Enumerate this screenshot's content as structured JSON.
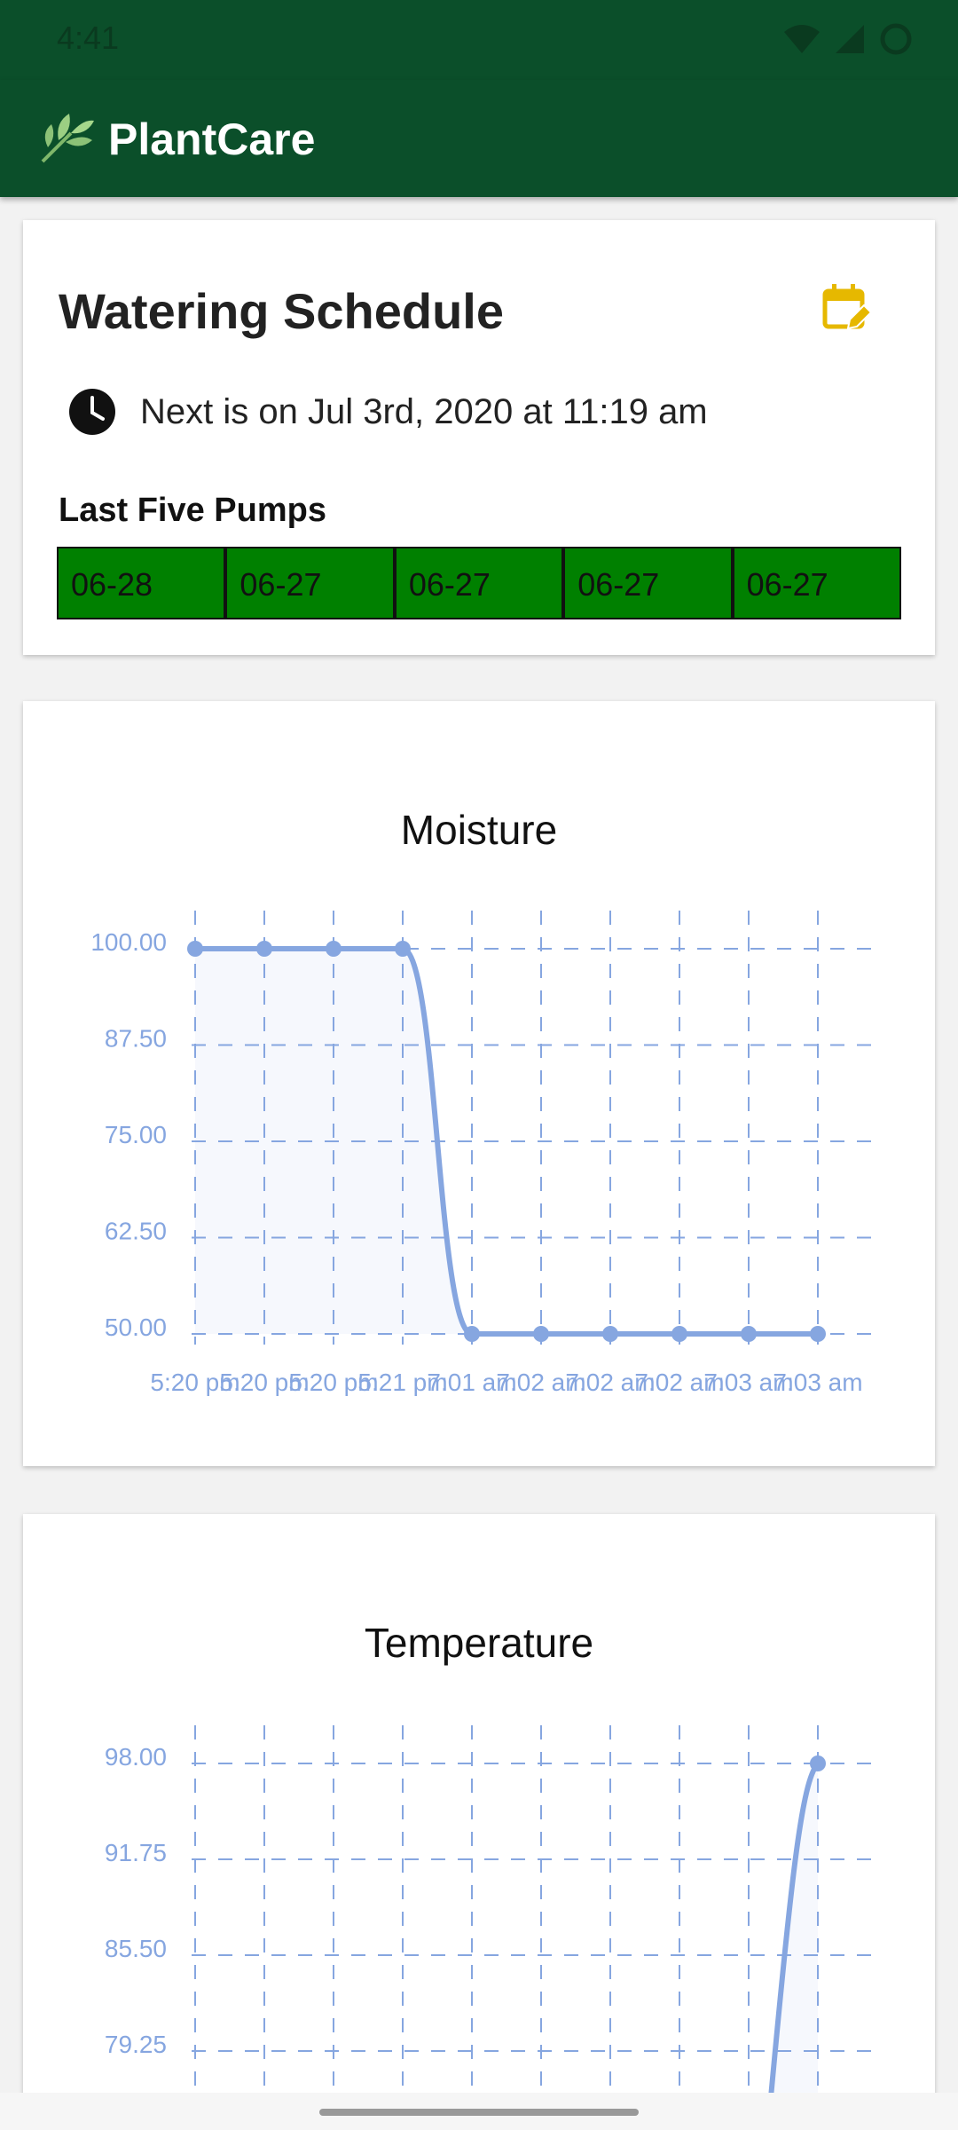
{
  "status_bar": {
    "time": "4:41"
  },
  "app_bar": {
    "title": "PlantCare"
  },
  "schedule": {
    "title": "Watering Schedule",
    "next_text": "Next is on Jul 3rd, 2020 at 11:19 am",
    "pumps_title": "Last Five Pumps",
    "pumps": [
      "06-28",
      "06-27",
      "06-27",
      "06-27",
      "06-27"
    ],
    "pump_color": "#008000"
  },
  "colors": {
    "primary": "#0b4f2a",
    "accent": "#e6b800",
    "chart_line": "#86a6e0"
  },
  "chart_data": [
    {
      "type": "line",
      "title": "Moisture",
      "x": [
        "5:20 pm",
        "5:20 pm",
        "5:20 pm",
        "5:21 pm",
        "7:01 am",
        "7:02 am",
        "7:02 am",
        "7:02 am",
        "7:03 am",
        "7:03 am"
      ],
      "values": [
        100,
        100,
        100,
        100,
        50,
        50,
        50,
        50,
        50,
        50
      ],
      "yticks": [
        "100.00",
        "87.50",
        "75.00",
        "62.50",
        "50.00"
      ],
      "ylim": [
        50,
        100
      ],
      "grid": true
    },
    {
      "type": "line",
      "title": "Temperature",
      "x": [
        "",
        "",
        "",
        "",
        "",
        "",
        "",
        "",
        "",
        ""
      ],
      "values": [
        null,
        null,
        null,
        null,
        null,
        null,
        null,
        null,
        null,
        98
      ],
      "yticks": [
        "98.00",
        "91.75",
        "85.50",
        "79.25"
      ],
      "ylim": [
        73,
        98
      ],
      "grid": true
    }
  ]
}
